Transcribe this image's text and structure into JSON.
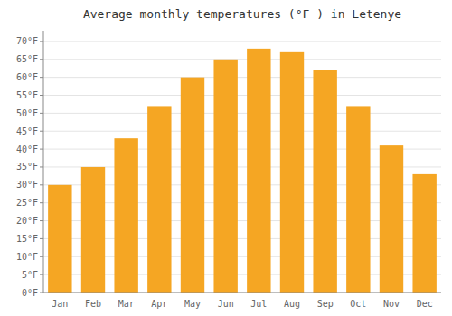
{
  "chart_data": {
    "type": "bar",
    "title": "Average monthly temperatures (°F ) in Letenye",
    "categories": [
      "Jan",
      "Feb",
      "Mar",
      "Apr",
      "May",
      "Jun",
      "Jul",
      "Aug",
      "Sep",
      "Oct",
      "Nov",
      "Dec"
    ],
    "values": [
      30,
      35,
      43,
      52,
      60,
      65,
      68,
      67,
      62,
      52,
      41,
      33
    ],
    "color": "#F5A623",
    "ylim": [
      0,
      73
    ],
    "yticks": [
      {
        "value": 0,
        "label": "0°F"
      },
      {
        "value": 5,
        "label": "5°F"
      },
      {
        "value": 10,
        "label": "10°F"
      },
      {
        "value": 15,
        "label": "15°F"
      },
      {
        "value": 20,
        "label": "20°F"
      },
      {
        "value": 25,
        "label": "25°F"
      },
      {
        "value": 30,
        "label": "30°F"
      },
      {
        "value": 35,
        "label": "35°F"
      },
      {
        "value": 40,
        "label": "40°F"
      },
      {
        "value": 45,
        "label": "45°F"
      },
      {
        "value": 50,
        "label": "50°F"
      },
      {
        "value": 55,
        "label": "55°F"
      },
      {
        "value": 60,
        "label": "60°F"
      },
      {
        "value": 65,
        "label": "65°F"
      },
      {
        "value": 70,
        "label": "70°F"
      }
    ],
    "grid": true
  }
}
